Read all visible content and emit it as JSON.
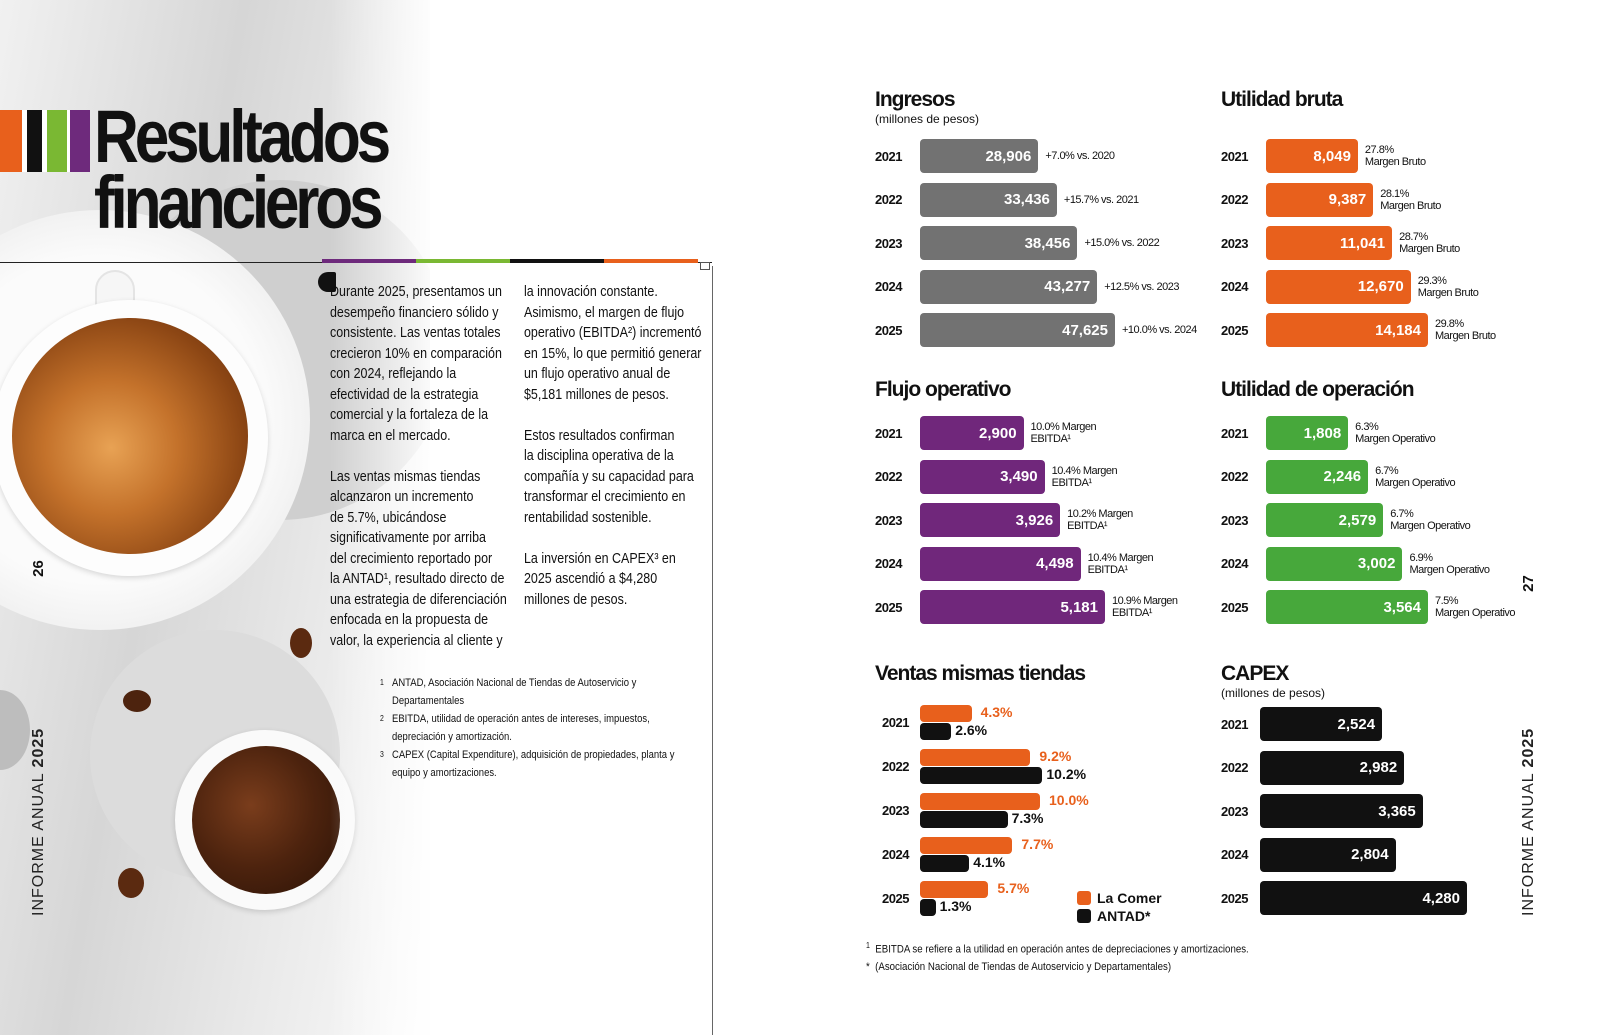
{
  "title": {
    "line1": "Resultados",
    "line2": "financieros"
  },
  "colors": {
    "orange": "#e8601c",
    "black": "#111111",
    "green": "#7ab833",
    "purple": "#6e2a7c",
    "gray": "#727272",
    "violet": "#70277b",
    "green_bar": "#47a83b"
  },
  "left_page": {
    "page_number": "26",
    "side_label": {
      "thin": "INFORME ANUAL",
      "bold": "2025"
    },
    "col1": "Durante 2025, presentamos un\ndesempeño financiero sólido y\nconsistente. Las ventas totales\ncrecieron 10% en comparación\ncon 2024, reflejando la\nefectividad de la estrategia\ncomercial y la fortaleza de la\nmarca en el mercado.\n\nLas ventas mismas tiendas\nalcanzaron un incremento\nde 5.7%, ubicándose\nsignificativamente por arriba\ndel crecimiento reportado por\nla ANTAD¹, resultado directo de\nuna estrategia de diferenciación\nenfocada en la propuesta de\nvalor, la experiencia al cliente y",
    "col2": "la innovación constante.\nAsimismo, el margen de flujo\noperativo (EBITDA²) incrementó\nen 15%, lo que permitió generar\nun flujo operativo anual de\n$5,181 millones de pesos.\n\nEstos resultados confirman\nla disciplina operativa de la\ncompañía y su capacidad para\ntransformar el crecimiento en\nrentabilidad sostenible.\n\nLa inversión en CAPEX³ en\n2025 ascendió a $4,280\nmillones de pesos.",
    "footnotes": [
      {
        "mark": "1",
        "text": "ANTAD, Asociación Nacional de Tiendas de Autoservicio y\nDepartamentales"
      },
      {
        "mark": "2",
        "text": "EBITDA, utilidad de operación antes de intereses, impuestos,\ndepreciación y amortización."
      },
      {
        "mark": "3",
        "text": "CAPEX (Capital Expenditure), adquisición de propiedades, planta y\nequipo y amortizaciones."
      }
    ]
  },
  "right_page": {
    "page_number": "27",
    "side_label": {
      "thin": "INFORME ANUAL",
      "bold": "2025"
    },
    "footnotes": [
      {
        "mark": "1",
        "text": "EBITDA se refiere a la utilidad en operación antes de depreciaciones y amortizaciones."
      },
      {
        "mark": "*",
        "text": "(Asociación Nacional de Tiendas de Autoservicio y Departamentales)"
      }
    ]
  },
  "chart_data": [
    {
      "id": "ingresos",
      "type": "bar",
      "orientation": "horizontal",
      "title": "Ingresos",
      "subtitle": "(millones de pesos)",
      "categories": [
        "2021",
        "2022",
        "2023",
        "2024",
        "2025"
      ],
      "values": [
        28906,
        33436,
        38456,
        43277,
        47625
      ],
      "labels": [
        "28,906",
        "33,436",
        "38,456",
        "43,277",
        "47,625"
      ],
      "annotations": [
        "+7.0% vs. 2020",
        "+15.7% vs. 2021",
        "+15.0% vs. 2022",
        "+12.5% vs. 2023",
        "+10.0% vs. 2024"
      ]
    },
    {
      "id": "utilidad_bruta",
      "type": "bar",
      "orientation": "horizontal",
      "title": "Utilidad bruta",
      "subtitle": "",
      "categories": [
        "2021",
        "2022",
        "2023",
        "2024",
        "2025"
      ],
      "values": [
        8049,
        9387,
        11041,
        12670,
        14184
      ],
      "labels": [
        "8,049",
        "9,387",
        "11,041",
        "12,670",
        "14,184"
      ],
      "annotations": [
        "27.8%\nMargen Bruto",
        "28.1%\nMargen Bruto",
        "28.7%\nMargen Bruto",
        "29.3%\nMargen Bruto",
        "29.8%\nMargen Bruto"
      ]
    },
    {
      "id": "flujo_operativo",
      "type": "bar",
      "orientation": "horizontal",
      "title": "Flujo operativo",
      "subtitle": "",
      "categories": [
        "2021",
        "2022",
        "2023",
        "2024",
        "2025"
      ],
      "values": [
        2900,
        3490,
        3926,
        4498,
        5181
      ],
      "labels": [
        "2,900",
        "3,490",
        "3,926",
        "4,498",
        "5,181"
      ],
      "annotations": [
        "10.0% Margen\nEBITDA¹",
        "10.4% Margen\nEBITDA¹",
        "10.2% Margen\nEBITDA¹",
        "10.4% Margen\nEBITDA¹",
        "10.9% Margen\nEBITDA¹"
      ]
    },
    {
      "id": "utilidad_operacion",
      "type": "bar",
      "orientation": "horizontal",
      "title": "Utilidad de operación",
      "subtitle": "",
      "categories": [
        "2021",
        "2022",
        "2023",
        "2024",
        "2025"
      ],
      "values": [
        1808,
        2246,
        2579,
        3002,
        3564
      ],
      "labels": [
        "1,808",
        "2,246",
        "2,579",
        "3,002",
        "3,564"
      ],
      "annotations": [
        "6.3%\nMargen Operativo",
        "6.7%\nMargen Operativo",
        "6.7%\nMargen Operativo",
        "6.9%\nMargen Operativo",
        "7.5%\nMargen Operativo"
      ]
    },
    {
      "id": "ventas_mismas_tiendas",
      "type": "bar",
      "orientation": "horizontal",
      "title": "Ventas mismas tiendas",
      "subtitle": "",
      "categories": [
        "2021",
        "2022",
        "2023",
        "2024",
        "2025"
      ],
      "series": [
        {
          "name": "La Comer",
          "values": [
            4.3,
            9.2,
            10.0,
            7.7,
            5.7
          ],
          "labels": [
            "4.3%",
            "9.2%",
            "10.0%",
            "7.7%",
            "5.7%"
          ]
        },
        {
          "name": "ANTAD*",
          "values": [
            2.6,
            10.2,
            7.3,
            4.1,
            1.3
          ],
          "labels": [
            "2.6%",
            "10.2%",
            "7.3%",
            "4.1%",
            "1.3%"
          ]
        }
      ]
    },
    {
      "id": "capex",
      "type": "bar",
      "orientation": "horizontal",
      "title": "CAPEX",
      "subtitle": "(millones de pesos)",
      "categories": [
        "2021",
        "2022",
        "2023",
        "2024",
        "2025"
      ],
      "values": [
        2524,
        2982,
        3365,
        2804,
        4280
      ],
      "labels": [
        "2,524",
        "2,982",
        "3,365",
        "2,804",
        "4,280"
      ]
    }
  ]
}
